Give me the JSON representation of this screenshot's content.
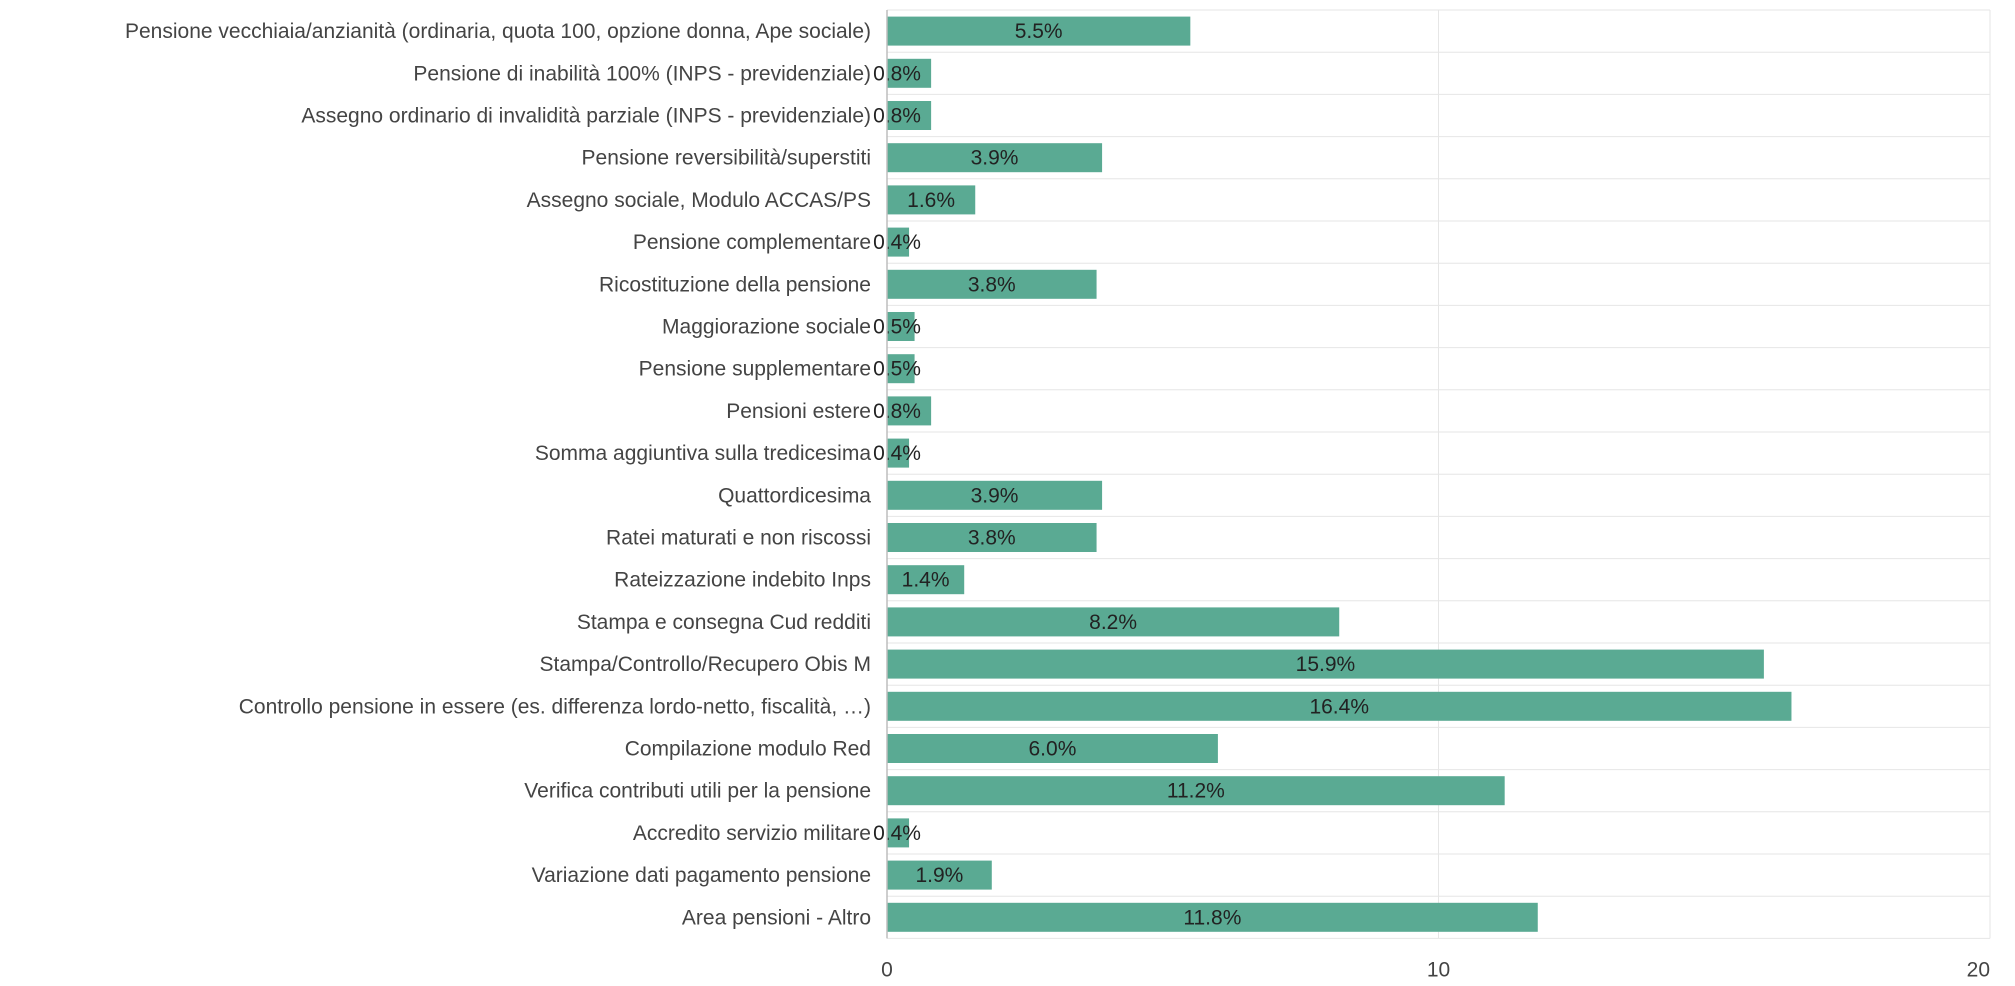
{
  "chart_data": {
    "type": "bar",
    "orientation": "horizontal",
    "title": "",
    "xlabel": "",
    "ylabel": "",
    "xlim": [
      0,
      20
    ],
    "x_ticks": [
      0,
      10,
      20
    ],
    "grid": true,
    "bar_color": "#5aaa93",
    "gridline_color": "#e6e6e6",
    "axis_line_color": "#bdbdbd",
    "label_color": "#444444",
    "value_label_color": "#222222",
    "categories": [
      "Pensione vecchiaia/anzianità (ordinaria, quota 100, opzione donna, Ape sociale)",
      "Pensione di inabilità 100% (INPS - previdenziale)",
      "Assegno ordinario di invalidità parziale (INPS - previdenziale)",
      "Pensione reversibilità/superstiti",
      "Assegno sociale, Modulo ACCAS/PS",
      "Pensione complementare",
      "Ricostituzione della pensione",
      "Maggiorazione sociale",
      "Pensione supplementare",
      "Pensioni estere",
      "Somma aggiuntiva sulla tredicesima",
      "Quattordicesima",
      "Ratei maturati e non riscossi",
      "Rateizzazione indebito Inps",
      "Stampa e consegna Cud redditi",
      "Stampa/Controllo/Recupero Obis M",
      "Controllo pensione in essere (es. differenza lordo-netto, fiscalità, …)",
      "Compilazione modulo Red",
      "Verifica contributi utili per la pensione",
      "Accredito servizio militare",
      "Variazione dati pagamento pensione",
      "Area pensioni - Altro"
    ],
    "values": [
      5.5,
      0.8,
      0.8,
      3.9,
      1.6,
      0.4,
      3.8,
      0.5,
      0.5,
      0.8,
      0.4,
      3.9,
      3.8,
      1.4,
      8.2,
      15.9,
      16.4,
      6.0,
      11.2,
      0.4,
      1.9,
      11.8
    ],
    "value_labels": [
      "5.5%",
      "0.8%",
      "0.8%",
      "3.9%",
      "1.6%",
      "0.4%",
      "3.8%",
      "0.5%",
      "0.5%",
      "0.8%",
      "0.4%",
      "3.9%",
      "3.8%",
      "1.4%",
      "8.2%",
      "15.9%",
      "16.4%",
      "6.0%",
      "11.2%",
      "0.4%",
      "1.9%",
      "11.8%"
    ]
  }
}
